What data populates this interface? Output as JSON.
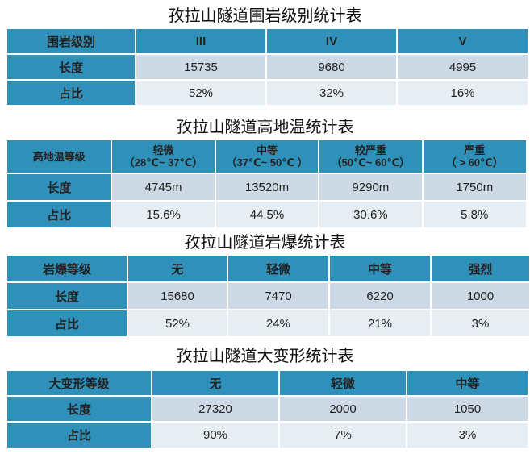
{
  "tables": [
    {
      "title": "孜拉山隧道围岩级别统计表",
      "corner": "围岩级别",
      "columns": [
        "III",
        "IV",
        "V"
      ],
      "rows": [
        {
          "label": "长度",
          "values": [
            "15735",
            "9680",
            "4995"
          ]
        },
        {
          "label": "占比",
          "values": [
            "52%",
            "32%",
            "16%"
          ]
        }
      ]
    },
    {
      "title": "孜拉山隧道高地温统计表",
      "corner": "高地温等级",
      "columns": [
        {
          "name": "轻微",
          "range": "（28℃~ 37℃）"
        },
        {
          "name": "中等",
          "range": "（37℃~ 50℃ ）"
        },
        {
          "name": "较严重",
          "range": "（50℃~ 60℃）"
        },
        {
          "name": "严重",
          "range": "（ > 60℃）"
        }
      ],
      "rows": [
        {
          "label": "长度",
          "values": [
            "4745m",
            "13520m",
            "9290m",
            "1750m"
          ]
        },
        {
          "label": "占比",
          "values": [
            "15.6%",
            "44.5%",
            "30.6%",
            "5.8%"
          ]
        }
      ]
    },
    {
      "title": "孜拉山隧道岩爆统计表",
      "corner": "岩爆等级",
      "columns": [
        "无",
        "轻微",
        "中等",
        "强烈"
      ],
      "rows": [
        {
          "label": "长度",
          "values": [
            "15680",
            "7470",
            "6220",
            "1000"
          ]
        },
        {
          "label": "占比",
          "values": [
            "52%",
            "24%",
            "21%",
            "3%"
          ]
        }
      ]
    },
    {
      "title": "孜拉山隧道大变形统计表",
      "corner": "大变形等级",
      "columns": [
        "无",
        "轻微",
        "中等"
      ],
      "rows": [
        {
          "label": "长度",
          "values": [
            "27320",
            "2000",
            "1050"
          ]
        },
        {
          "label": "占比",
          "values": [
            "90%",
            "7%",
            "3%"
          ]
        }
      ]
    }
  ],
  "colors": {
    "header": "#2f91b9",
    "row_dark": "#cdd9e5",
    "row_light": "#e6edf3"
  }
}
